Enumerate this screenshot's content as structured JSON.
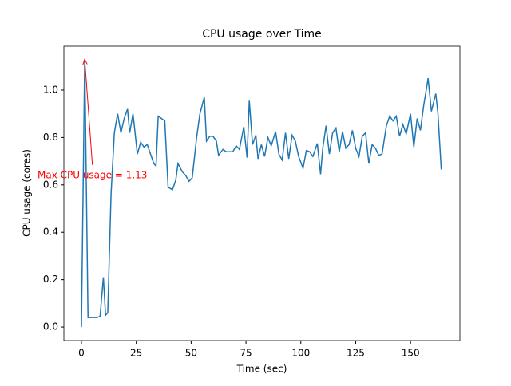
{
  "chart_data": {
    "type": "line",
    "title": "CPU usage over Time",
    "xlabel": "Time (sec)",
    "ylabel": "CPU usage (cores)",
    "x": [
      0,
      1.5,
      3,
      7,
      8.5,
      10,
      11,
      12,
      13.5,
      15,
      16.5,
      18,
      19.5,
      21,
      22,
      23.5,
      25.5,
      27,
      28.5,
      30,
      33,
      34,
      35,
      36.5,
      38,
      39.5,
      41.5,
      43,
      44,
      46,
      47.5,
      49,
      50.5,
      52.5,
      54,
      56,
      57,
      58.5,
      60,
      61.5,
      62.5,
      64.5,
      66,
      69,
      70.5,
      72,
      74,
      75.5,
      76.5,
      78,
      79.5,
      80.5,
      82,
      83.5,
      85,
      86.5,
      88.5,
      90,
      91.5,
      93,
      94.5,
      96,
      97.5,
      99,
      101,
      102.5,
      104,
      105.5,
      107.5,
      109,
      110,
      111.5,
      113,
      114.5,
      116,
      117.5,
      119,
      120.5,
      122,
      123.5,
      125,
      126.5,
      128,
      129.5,
      131,
      132.5,
      134,
      135.5,
      137,
      139,
      140.5,
      142,
      143.5,
      145,
      146.5,
      148,
      150,
      151.5,
      153,
      154.5,
      156,
      158,
      159.5,
      161.5,
      162.5,
      164
    ],
    "series": [
      {
        "name": "CPU usage",
        "color": "#1f77b4",
        "values": [
          0,
          1.13,
          0.04,
          0.04,
          0.045,
          0.21,
          0.05,
          0.06,
          0.56,
          0.82,
          0.9,
          0.82,
          0.88,
          0.92,
          0.82,
          0.9,
          0.73,
          0.78,
          0.76,
          0.77,
          0.69,
          0.68,
          0.89,
          0.88,
          0.87,
          0.59,
          0.58,
          0.62,
          0.69,
          0.655,
          0.64,
          0.615,
          0.63,
          0.8,
          0.9,
          0.97,
          0.785,
          0.805,
          0.805,
          0.785,
          0.725,
          0.75,
          0.74,
          0.74,
          0.765,
          0.75,
          0.845,
          0.715,
          0.955,
          0.77,
          0.81,
          0.71,
          0.77,
          0.72,
          0.8,
          0.765,
          0.825,
          0.73,
          0.705,
          0.82,
          0.71,
          0.81,
          0.785,
          0.72,
          0.67,
          0.745,
          0.74,
          0.72,
          0.775,
          0.645,
          0.755,
          0.85,
          0.73,
          0.82,
          0.84,
          0.74,
          0.825,
          0.755,
          0.77,
          0.83,
          0.755,
          0.72,
          0.805,
          0.82,
          0.69,
          0.77,
          0.755,
          0.725,
          0.73,
          0.85,
          0.89,
          0.87,
          0.89,
          0.805,
          0.855,
          0.815,
          0.9,
          0.76,
          0.88,
          0.83,
          0.935,
          1.05,
          0.91,
          0.985,
          0.9,
          0.665
        ]
      }
    ],
    "xlim": [
      -8,
      172.5
    ],
    "ylim": [
      -0.057,
      1.185
    ],
    "xticks": [
      0,
      25,
      50,
      75,
      100,
      125,
      150
    ],
    "yticks": [
      {
        "value": 0,
        "label": "0.0"
      },
      {
        "value": 0.2,
        "label": "0.2"
      },
      {
        "value": 0.4,
        "label": "0.4"
      },
      {
        "value": 0.6,
        "label": "0.6"
      },
      {
        "value": 0.8,
        "label": "0.8"
      },
      {
        "value": 1,
        "label": "1.0"
      }
    ],
    "annotation": {
      "text": "Max CPU usage = 1.13",
      "x": 1.5,
      "y": 1.13,
      "text_x": 5,
      "text_y": 0.64,
      "color": "#ff0000"
    }
  }
}
